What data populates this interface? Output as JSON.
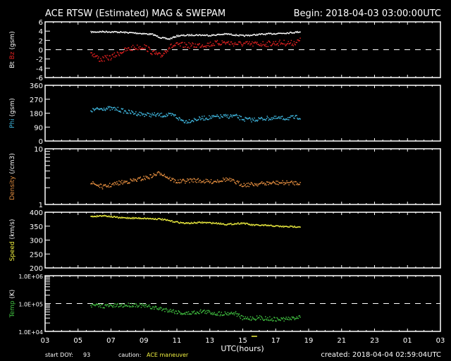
{
  "header": {
    "title": "ACE RTSW (Estimated) MAG & SWEPAM",
    "begin": "Begin: 2018-04-03 03:00:00UTC"
  },
  "footer": {
    "start_doy_label": "start DOY:",
    "start_doy": "93",
    "caution_label": "caution:",
    "caution": "ACE maneuver",
    "created": "created: 2018-04-04 02:59:04UTC",
    "xlabel": "UTC(hours)"
  },
  "colors": {
    "bt": "#ffffff",
    "bz": "#e02020",
    "phi": "#40b8e0",
    "density": "#e89040",
    "speed": "#f0f040",
    "temp": "#40c040",
    "caution": "#f0f040"
  },
  "chart_data": [
    {
      "type": "scatter",
      "id": "mag",
      "ylabel_parts": [
        "Bt",
        "Bz",
        "(gsm)"
      ],
      "ylim": [
        -6,
        6
      ],
      "yticks": [
        "6",
        "4",
        "2",
        "0",
        "-2",
        "-4",
        "-6"
      ],
      "scale": "linear",
      "reference_line": 0,
      "series": [
        {
          "name": "Bt",
          "x": [
            5.75,
            6.5,
            7.5,
            8.5,
            9.5,
            10.0,
            10.5,
            11.0,
            12.0,
            13.0,
            14.0,
            15.0,
            16.0,
            17.0,
            18.0,
            18.5
          ],
          "y": [
            3.9,
            4.0,
            3.9,
            3.7,
            3.4,
            2.7,
            2.4,
            3.1,
            3.3,
            3.2,
            3.5,
            3.1,
            3.4,
            3.6,
            3.8,
            4.0
          ]
        },
        {
          "name": "Bz",
          "x": [
            5.75,
            6.3,
            7.0,
            7.7,
            8.3,
            9.0,
            9.5,
            10.0,
            10.5,
            11.0,
            12.0,
            13.0,
            13.8,
            14.5,
            15.5,
            16.5,
            17.3,
            18.0,
            18.5
          ],
          "y": [
            -0.5,
            -2.0,
            -1.5,
            -0.2,
            0.5,
            0.8,
            -0.5,
            -1.3,
            0.7,
            1.1,
            1.0,
            1.3,
            1.7,
            1.4,
            1.3,
            1.4,
            1.6,
            1.5,
            2.1
          ]
        }
      ]
    },
    {
      "type": "scatter",
      "id": "phi",
      "ylabel_parts": [
        "Phi",
        "(gsm)"
      ],
      "ylim": [
        0,
        360
      ],
      "yticks": [
        "360",
        "270",
        "180",
        "90",
        "0"
      ],
      "scale": "linear",
      "series": [
        {
          "name": "Phi",
          "x": [
            5.75,
            6.5,
            7.3,
            8.0,
            9.0,
            10.0,
            10.8,
            11.2,
            11.5,
            12.5,
            13.5,
            14.5,
            15.0,
            15.5,
            16.5,
            17.5,
            18.5
          ],
          "y": [
            200,
            215,
            210,
            190,
            175,
            170,
            170,
            140,
            130,
            150,
            160,
            165,
            145,
            140,
            150,
            150,
            158
          ]
        }
      ]
    },
    {
      "type": "scatter",
      "id": "density",
      "ylabel_parts": [
        "Density",
        "(/cm3)"
      ],
      "ylim": [
        1,
        10
      ],
      "yticks": [
        "10",
        "1"
      ],
      "scale": "log",
      "series": [
        {
          "name": "Density",
          "x": [
            5.75,
            6.5,
            7.5,
            8.5,
            9.3,
            10.0,
            10.5,
            11.0,
            12.0,
            13.0,
            14.0,
            15.0,
            16.0,
            17.0,
            18.5
          ],
          "y": [
            2.5,
            2.1,
            2.5,
            2.8,
            3.2,
            3.8,
            3.0,
            2.6,
            2.8,
            2.6,
            2.9,
            2.3,
            2.4,
            2.5,
            2.5
          ]
        }
      ]
    },
    {
      "type": "scatter",
      "id": "speed",
      "ylabel_parts": [
        "Speed",
        "(km/s)"
      ],
      "ylim": [
        200,
        400
      ],
      "yticks": [
        "400",
        "350",
        "300",
        "250",
        "200"
      ],
      "scale": "linear",
      "series": [
        {
          "name": "Speed",
          "x": [
            5.75,
            6.5,
            7.5,
            9.0,
            10.0,
            10.8,
            11.5,
            12.5,
            13.5,
            14.0,
            15.0,
            15.5,
            16.5,
            17.5,
            18.5
          ],
          "y": [
            386,
            390,
            382,
            380,
            377,
            368,
            362,
            365,
            362,
            358,
            363,
            356,
            354,
            350,
            350
          ]
        }
      ]
    },
    {
      "type": "scatter",
      "id": "temp",
      "ylabel_parts": [
        "Temp",
        "(K)"
      ],
      "ylim": [
        10000,
        1000000
      ],
      "yticks": [
        "1.0E+06",
        "1.0E+05",
        "1.0E+04"
      ],
      "scale": "log",
      "reference_line": 100000,
      "series": [
        {
          "name": "Temp",
          "x": [
            5.75,
            7.0,
            8.5,
            9.5,
            10.5,
            11.5,
            12.5,
            13.5,
            14.5,
            15.0,
            16.0,
            17.0,
            18.0,
            18.5
          ],
          "y": [
            88000,
            85000,
            95000,
            75000,
            60000,
            45000,
            55000,
            45000,
            48000,
            30000,
            32000,
            28000,
            30000,
            38000
          ]
        }
      ]
    }
  ],
  "xaxis": {
    "range": [
      3,
      27
    ],
    "ticklabels": [
      "03",
      "05",
      "07",
      "09",
      "11",
      "13",
      "15",
      "17",
      "19",
      "21",
      "23",
      "01",
      "03"
    ]
  },
  "caution_marker_hour": 15.7
}
